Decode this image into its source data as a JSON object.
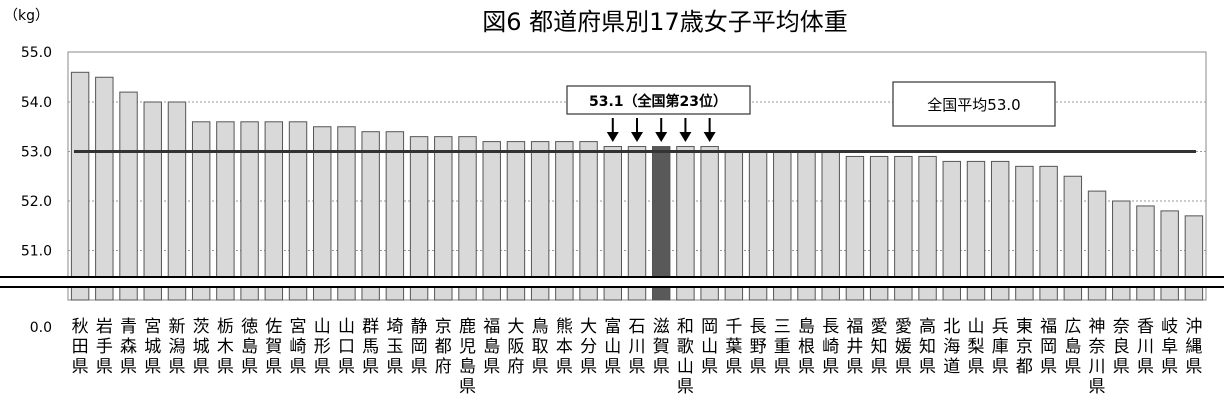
{
  "chart_data": {
    "type": "bar",
    "title": "図6 都道府県別17歳女子平均体重",
    "unit_label": "（kg）",
    "y_ticks": [
      "55.0",
      "54.0",
      "53.0",
      "52.0",
      "51.0",
      "0.0"
    ],
    "ylim": [
      50.5,
      55.0
    ],
    "axis_break": true,
    "grid": true,
    "categories": [
      "秋田県",
      "岩手県",
      "青森県",
      "宮城県",
      "新潟県",
      "茨城県",
      "栃木県",
      "徳島県",
      "佐賀県",
      "宮崎県",
      "山形県",
      "山口県",
      "群馬県",
      "埼玉県",
      "静岡県",
      "京都府",
      "鹿児島県",
      "福島県",
      "大阪府",
      "鳥取県",
      "熊本県",
      "大分県",
      "富山県",
      "石川県",
      "滋賀県",
      "和歌山県",
      "岡山県",
      "千葉県",
      "長野県",
      "三重県",
      "島根県",
      "長崎県",
      "福井県",
      "愛知県",
      "愛媛県",
      "高知県",
      "北海道",
      "山梨県",
      "兵庫県",
      "東京都",
      "福岡県",
      "広島県",
      "神奈川県",
      "奈良県",
      "香川県",
      "岐阜県",
      "沖縄県"
    ],
    "values": [
      54.6,
      54.5,
      54.2,
      54.0,
      54.0,
      53.6,
      53.6,
      53.6,
      53.6,
      53.6,
      53.5,
      53.5,
      53.4,
      53.4,
      53.3,
      53.3,
      53.3,
      53.2,
      53.2,
      53.2,
      53.2,
      53.2,
      53.1,
      53.1,
      53.1,
      53.1,
      53.1,
      53.0,
      53.0,
      53.0,
      53.0,
      53.0,
      52.9,
      52.9,
      52.9,
      52.9,
      52.8,
      52.8,
      52.8,
      52.7,
      52.7,
      52.5,
      52.2,
      52.0,
      51.9,
      51.8,
      51.7
    ],
    "highlight_index": 24,
    "national_average": 53.0,
    "national_average_label": "全国平均53.0",
    "highlight_label": "53.1（全国第23位）",
    "tied_rank_indices": [
      22,
      23,
      24,
      25,
      26
    ],
    "colors": {
      "bar": "#d9d9d9",
      "bar_stroke": "#555555",
      "highlight": "#595959",
      "average_line": "#333333",
      "grid": "#999999"
    }
  }
}
